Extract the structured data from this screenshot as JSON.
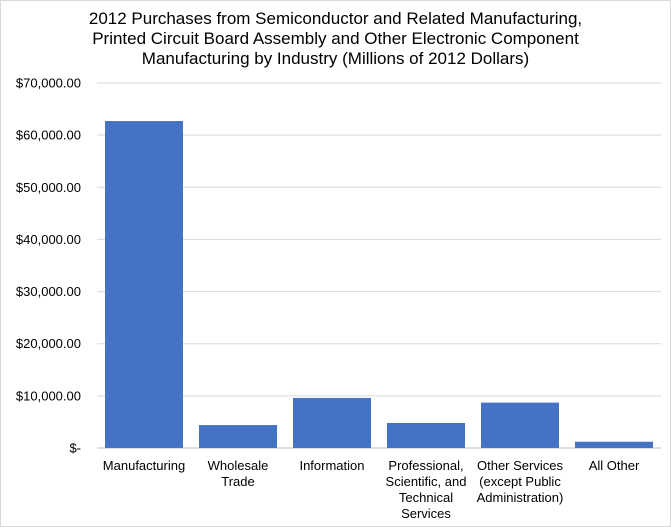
{
  "chart_data": {
    "type": "bar",
    "title_lines": [
      "2012 Purchases from Semiconductor and Related Manufacturing,",
      "Printed Circuit Board Assembly and Other Electronic Component",
      "Manufacturing by Industry (Millions of 2012 Dollars)"
    ],
    "categories": [
      [
        "Manufacturing"
      ],
      [
        "Wholesale",
        "Trade"
      ],
      [
        "Information"
      ],
      [
        "Professional,",
        "Scientific, and",
        "Technical",
        "Services"
      ],
      [
        "Other Services",
        "(except Public",
        "Administration)"
      ],
      [
        "All Other"
      ]
    ],
    "values": [
      62700,
      4400,
      9600,
      4800,
      8700,
      1200
    ],
    "ylim": [
      0,
      70000
    ],
    "yticks": [
      0,
      10000,
      20000,
      30000,
      40000,
      50000,
      60000,
      70000
    ],
    "ytick_labels": [
      "$-",
      "$10,000.00",
      "$20,000.00",
      "$30,000.00",
      "$40,000.00",
      "$50,000.00",
      "$60,000.00",
      "$70,000.00"
    ],
    "bar_color": "#4472C4",
    "grid": true,
    "gridline_color": "#d9d9d9",
    "axis_color": "#bfbfbf"
  }
}
